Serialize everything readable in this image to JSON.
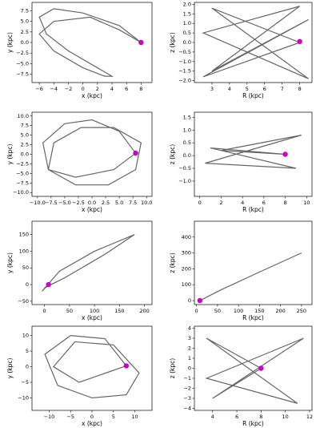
{
  "chart_data": [
    {
      "type": "orbit",
      "xlabel": "x (kpc)",
      "ylabel": "y (kpc)",
      "xlim": [
        -7,
        9.5
      ],
      "ylim": [
        -9.5,
        9.5
      ],
      "xticks": [
        {
          "value": -6,
          "label": "−6"
        },
        {
          "value": -4,
          "label": "−4"
        },
        {
          "value": -2,
          "label": "−2"
        },
        0,
        2,
        4,
        6,
        8
      ],
      "yticks": [
        {
          "value": -7.5,
          "label": "−7.5"
        },
        {
          "value": -5,
          "label": "−5.0"
        },
        {
          "value": -2.5,
          "label": "−2.5"
        },
        {
          "value": 0,
          "label": "0.0"
        },
        2.5,
        {
          "value": 5,
          "label": "5.0"
        },
        7.5
      ],
      "x": [
        8,
        5,
        0,
        -4,
        -6,
        -5,
        -2,
        2,
        4,
        3,
        0,
        -4,
        -6,
        -4,
        1,
        5,
        8
      ],
      "values": [
        0,
        4,
        7,
        8,
        6,
        2,
        -2,
        -6,
        -8,
        -8,
        -6,
        -2,
        2,
        5,
        6,
        3,
        0
      ],
      "color": "#000000",
      "marker": {
        "x": 8,
        "y": 0,
        "color": "#c800c8"
      }
    },
    {
      "type": "orbit",
      "xlabel": "R (kpc)",
      "ylabel": "z (kpc)",
      "xlim": [
        2,
        8.7
      ],
      "ylim": [
        -2.1,
        2.1
      ],
      "xticks": [
        3,
        4,
        5,
        6,
        7,
        8
      ],
      "yticks": [
        {
          "value": -2,
          "label": "−2.0"
        },
        {
          "value": -1.5,
          "label": "−1.5"
        },
        {
          "value": -1,
          "label": "−1.0"
        },
        {
          "value": -0.5,
          "label": "−0.5"
        },
        {
          "value": 0,
          "label": "0.0"
        },
        0.5,
        {
          "value": 1,
          "label": "1.0"
        },
        1.5,
        {
          "value": 2,
          "label": "2.0"
        }
      ],
      "x": [
        8,
        3,
        8.5,
        2.5,
        8,
        3,
        8.5,
        2.5,
        8
      ],
      "values": [
        0,
        1.8,
        -1.9,
        0.5,
        1.9,
        -1.5,
        1.2,
        -1.8,
        0
      ],
      "color": "#000000",
      "marker": {
        "x": 8,
        "y": 0.05,
        "color": "#c800c8"
      }
    },
    {
      "type": "orbit",
      "xlabel": "x (kpc)",
      "ylabel": "y (kpc)",
      "xlim": [
        -11,
        11
      ],
      "ylim": [
        -11,
        11
      ],
      "xticks": [
        {
          "value": -10,
          "label": "−10.0"
        },
        {
          "value": -7.5,
          "label": "−7.5"
        },
        {
          "value": -5,
          "label": "−5.0"
        },
        {
          "value": -2.5,
          "label": "−2.5"
        },
        {
          "value": 0,
          "label": "0.0"
        },
        2.5,
        {
          "value": 5,
          "label": "5.0"
        },
        7.5,
        {
          "value": 10,
          "label": "10.0"
        }
      ],
      "yticks": [
        {
          "value": -10,
          "label": "−10.0"
        },
        {
          "value": -7.5,
          "label": "−7.5"
        },
        {
          "value": -5,
          "label": "−5.0"
        },
        {
          "value": -2.5,
          "label": "−2.5"
        },
        {
          "value": 0,
          "label": "0.0"
        },
        2.5,
        {
          "value": 5,
          "label": "5.0"
        },
        7.5,
        {
          "value": 10,
          "label": "10.0"
        }
      ],
      "x": [
        8,
        5,
        0,
        -5,
        -9,
        -8,
        -3,
        3,
        8,
        9,
        4,
        -2,
        -7,
        -8,
        -3,
        4,
        8
      ],
      "values": [
        0.3,
        6,
        9,
        8,
        3,
        -4,
        -8,
        -8,
        -4,
        3,
        7,
        7,
        3,
        -4,
        -6,
        -4,
        0.3
      ],
      "color": "#000000",
      "marker": {
        "x": 8,
        "y": 0.3,
        "color": "#c800c8"
      }
    },
    {
      "type": "orbit",
      "xlabel": "R (kpc)",
      "ylabel": "z (kpc)",
      "xlim": [
        -0.5,
        10.5
      ],
      "ylim": [
        -1.6,
        1.7
      ],
      "xticks": [
        0,
        2,
        4,
        6,
        8,
        10
      ],
      "yticks": [
        {
          "value": -1,
          "label": "−1.0"
        },
        {
          "value": -0.5,
          "label": "−0.5"
        },
        {
          "value": 0,
          "label": "0.0"
        },
        0.5,
        {
          "value": 1,
          "label": "1.0"
        },
        1.5
      ],
      "x": [
        8,
        1,
        9,
        0.5,
        9.5,
        2,
        8
      ],
      "values": [
        0.05,
        0.3,
        -0.5,
        -0.3,
        0.8,
        0.2,
        0.05
      ],
      "color": "#000000",
      "marker": {
        "x": 8,
        "y": 0.05,
        "color": "#c800c8"
      }
    },
    {
      "type": "orbit",
      "xlabel": "x (kpc)",
      "ylabel": "y (kpc)",
      "xlim": [
        -25,
        215
      ],
      "ylim": [
        -60,
        190
      ],
      "xticks": [
        0,
        50,
        100,
        150,
        200
      ],
      "yticks": [
        {
          "value": -50,
          "label": "−50"
        },
        0,
        50,
        100,
        150
      ],
      "x": [
        8,
        -5,
        30,
        100,
        180,
        120,
        40,
        0,
        8
      ],
      "values": [
        0,
        -20,
        40,
        100,
        150,
        90,
        20,
        -10,
        0
      ],
      "color": "#000000",
      "marker": {
        "x": 8,
        "y": 0,
        "color": "#c800c8"
      }
    },
    {
      "type": "orbit",
      "xlabel": "R (kpc)",
      "ylabel": "z (kpc)",
      "xlim": [
        -5,
        275
      ],
      "ylim": [
        -25,
        500
      ],
      "xticks": [
        0,
        50,
        100,
        150,
        200,
        250
      ],
      "yticks": [
        0,
        100,
        200,
        300,
        400
      ],
      "x": [
        8,
        60,
        150,
        250,
        150,
        60,
        8
      ],
      "values": [
        0,
        70,
        180,
        300,
        180,
        70,
        0
      ],
      "color": "#000000",
      "marker": {
        "x": 8,
        "y": 0,
        "color": "#c800c8"
      }
    },
    {
      "type": "orbit",
      "xlabel": "x (kpc)",
      "ylabel": "y (kpc)",
      "xlim": [
        -14,
        14
      ],
      "ylim": [
        -14,
        13
      ],
      "xticks": [
        {
          "value": -10,
          "label": "−10"
        },
        {
          "value": -5,
          "label": "−5"
        },
        0,
        5,
        10
      ],
      "yticks": [
        {
          "value": -10,
          "label": "−10"
        },
        {
          "value": -5,
          "label": "−5"
        },
        0,
        5,
        10
      ],
      "x": [
        8,
        3,
        -5,
        -11,
        -8,
        0,
        8,
        11,
        5,
        -4,
        -9,
        -3,
        8
      ],
      "values": [
        0.3,
        9,
        10,
        4,
        -6,
        -10,
        -9,
        -2,
        7,
        8,
        0,
        -5,
        0.3
      ],
      "color": "#000000",
      "marker": {
        "x": 8,
        "y": 0.3,
        "color": "#c800c8"
      }
    },
    {
      "type": "orbit",
      "xlabel": "R (kpc)",
      "ylabel": "z (kpc)",
      "xlim": [
        2.5,
        12.2
      ],
      "ylim": [
        -4.2,
        4.2
      ],
      "xticks": [
        4,
        6,
        8,
        10,
        12
      ],
      "yticks": [
        {
          "value": -4,
          "label": "−4"
        },
        {
          "value": -3,
          "label": "−3"
        },
        {
          "value": -2,
          "label": "−2"
        },
        {
          "value": -1,
          "label": "−1"
        },
        0,
        1,
        2,
        3,
        4
      ],
      "x": [
        8,
        3.5,
        11,
        3.5,
        11.5,
        4,
        8
      ],
      "values": [
        0,
        3,
        -3.5,
        -1,
        3,
        -3,
        0
      ],
      "color": "#000000",
      "marker": {
        "x": 8,
        "y": 0,
        "color": "#c800c8"
      }
    }
  ]
}
